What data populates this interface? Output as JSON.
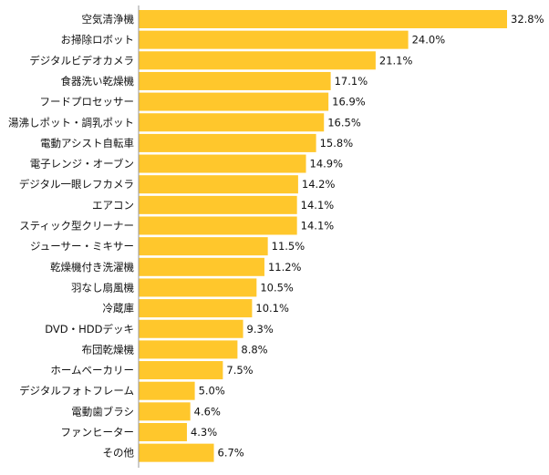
{
  "chart_data": {
    "type": "bar",
    "orientation": "horizontal",
    "categories": [
      "空気清浄機",
      "お掃除ロボット",
      "デジタルビデオカメラ",
      "食器洗い乾燥機",
      "フードプロセッサー",
      "湯沸しポット・調乳ポット",
      "電動アシスト自転車",
      "電子レンジ・オーブン",
      "デジタル一眼レフカメラ",
      "エアコン",
      "スティック型クリーナー",
      "ジューサー・ミキサー",
      "乾燥機付き洗濯機",
      "羽なし扇風機",
      "冷蔵庫",
      "DVD・HDDデッキ",
      "布団乾燥機",
      "ホームベーカリー",
      "デジタルフォトフレーム",
      "電動歯ブラシ",
      "ファンヒーター",
      "その他"
    ],
    "values": [
      32.8,
      24.0,
      21.1,
      17.1,
      16.9,
      16.5,
      15.8,
      14.9,
      14.2,
      14.1,
      14.1,
      11.5,
      11.2,
      10.5,
      10.1,
      9.3,
      8.8,
      7.5,
      5.0,
      4.6,
      4.3,
      6.7
    ],
    "value_labels": [
      "32.8%",
      "24.0%",
      "21.1%",
      "17.1%",
      "16.9%",
      "16.5%",
      "15.8%",
      "14.9%",
      "14.2%",
      "14.1%",
      "14.1%",
      "11.5%",
      "11.2%",
      "10.5%",
      "10.1%",
      "9.3%",
      "8.8%",
      "7.5%",
      "5.0%",
      "4.6%",
      "4.3%",
      "6.7%"
    ],
    "title": "",
    "xlabel": "",
    "ylabel": "",
    "xlim": [
      0,
      32.8
    ],
    "grid": false,
    "legend": "none",
    "bar_color": "#FFC72C",
    "axis_color": "#9A9A9A"
  }
}
